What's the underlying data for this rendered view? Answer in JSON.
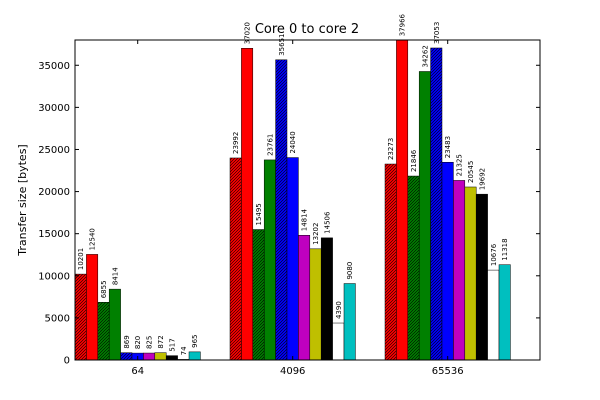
{
  "chart_data": {
    "type": "bar",
    "title": "Core 0 to core 2",
    "xlabel": "",
    "ylabel": "Transfer size [bytes]",
    "ylim": [
      0,
      38000
    ],
    "yticks": [
      0,
      5000,
      10000,
      15000,
      20000,
      25000,
      30000,
      35000
    ],
    "grid": false,
    "categories": [
      "64",
      "4096",
      "65536"
    ],
    "series": [
      {
        "color": "#ff0000",
        "hatch": true,
        "values": [
          10201,
          23992,
          23273
        ]
      },
      {
        "color": "#ff0000",
        "hatch": false,
        "values": [
          12540,
          37020,
          37966
        ]
      },
      {
        "color": "#008000",
        "hatch": true,
        "values": [
          6855,
          15495,
          21846
        ]
      },
      {
        "color": "#008000",
        "hatch": false,
        "values": [
          8414,
          23761,
          34262
        ]
      },
      {
        "color": "#0000ff",
        "hatch": true,
        "values": [
          869,
          35651,
          37053
        ]
      },
      {
        "color": "#0000ff",
        "hatch": false,
        "values": [
          820,
          24040,
          23483
        ]
      },
      {
        "color": "#bf00bf",
        "hatch": false,
        "values": [
          825,
          14814,
          21325
        ]
      },
      {
        "color": "#bfbf00",
        "hatch": false,
        "values": [
          872,
          13202,
          20545
        ]
      },
      {
        "color": "#000000",
        "hatch": false,
        "values": [
          517,
          14506,
          19692
        ]
      },
      {
        "color": "#ffffff",
        "hatch": false,
        "values": [
          74,
          4390,
          10676
        ]
      },
      {
        "color": "#00bfbf",
        "hatch": false,
        "values": [
          965,
          9080,
          11318
        ]
      }
    ]
  }
}
